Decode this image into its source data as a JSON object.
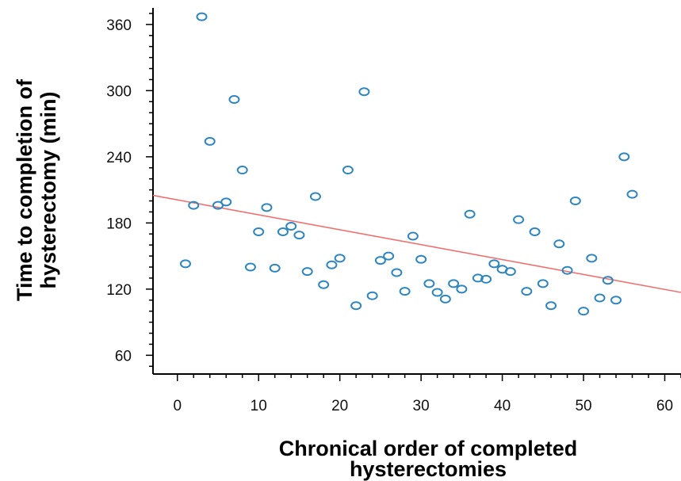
{
  "chart_data": {
    "type": "scatter",
    "xlabel": [
      "Chronical order of completed",
      "hysterectomies"
    ],
    "ylabel": [
      "Time to completion of",
      "hysterectomy (min)"
    ],
    "xlim": [
      -3,
      62
    ],
    "ylim": [
      43,
      375
    ],
    "xticks": [
      0,
      10,
      20,
      30,
      40,
      50,
      60
    ],
    "yticks": [
      60,
      120,
      180,
      240,
      300,
      360
    ],
    "grid": false,
    "marker_color": "#2e86c1",
    "trend_color": "#f07070",
    "trendline": {
      "x": [
        -3,
        62
      ],
      "y": [
        205,
        117
      ]
    },
    "points": [
      {
        "x": 1,
        "y": 143
      },
      {
        "x": 2,
        "y": 196
      },
      {
        "x": 3,
        "y": 367
      },
      {
        "x": 4,
        "y": 254
      },
      {
        "x": 5,
        "y": 196
      },
      {
        "x": 6,
        "y": 199
      },
      {
        "x": 7,
        "y": 292
      },
      {
        "x": 8,
        "y": 228
      },
      {
        "x": 9,
        "y": 140
      },
      {
        "x": 10,
        "y": 172
      },
      {
        "x": 11,
        "y": 194
      },
      {
        "x": 12,
        "y": 139
      },
      {
        "x": 13,
        "y": 172
      },
      {
        "x": 14,
        "y": 177
      },
      {
        "x": 15,
        "y": 169
      },
      {
        "x": 16,
        "y": 136
      },
      {
        "x": 17,
        "y": 204
      },
      {
        "x": 18,
        "y": 124
      },
      {
        "x": 19,
        "y": 142
      },
      {
        "x": 20,
        "y": 148
      },
      {
        "x": 21,
        "y": 228
      },
      {
        "x": 22,
        "y": 105
      },
      {
        "x": 23,
        "y": 299
      },
      {
        "x": 24,
        "y": 114
      },
      {
        "x": 25,
        "y": 146
      },
      {
        "x": 26,
        "y": 150
      },
      {
        "x": 27,
        "y": 135
      },
      {
        "x": 28,
        "y": 118
      },
      {
        "x": 29,
        "y": 168
      },
      {
        "x": 30,
        "y": 147
      },
      {
        "x": 31,
        "y": 125
      },
      {
        "x": 32,
        "y": 117
      },
      {
        "x": 33,
        "y": 111
      },
      {
        "x": 34,
        "y": 125
      },
      {
        "x": 35,
        "y": 120
      },
      {
        "x": 36,
        "y": 188
      },
      {
        "x": 37,
        "y": 130
      },
      {
        "x": 38,
        "y": 129
      },
      {
        "x": 39,
        "y": 143
      },
      {
        "x": 40,
        "y": 138
      },
      {
        "x": 41,
        "y": 136
      },
      {
        "x": 42,
        "y": 183
      },
      {
        "x": 43,
        "y": 118
      },
      {
        "x": 44,
        "y": 172
      },
      {
        "x": 45,
        "y": 125
      },
      {
        "x": 46,
        "y": 105
      },
      {
        "x": 47,
        "y": 161
      },
      {
        "x": 48,
        "y": 137
      },
      {
        "x": 49,
        "y": 200
      },
      {
        "x": 50,
        "y": 100
      },
      {
        "x": 51,
        "y": 148
      },
      {
        "x": 52,
        "y": 112
      },
      {
        "x": 53,
        "y": 128
      },
      {
        "x": 54,
        "y": 110
      },
      {
        "x": 55,
        "y": 240
      },
      {
        "x": 56,
        "y": 206
      }
    ]
  }
}
